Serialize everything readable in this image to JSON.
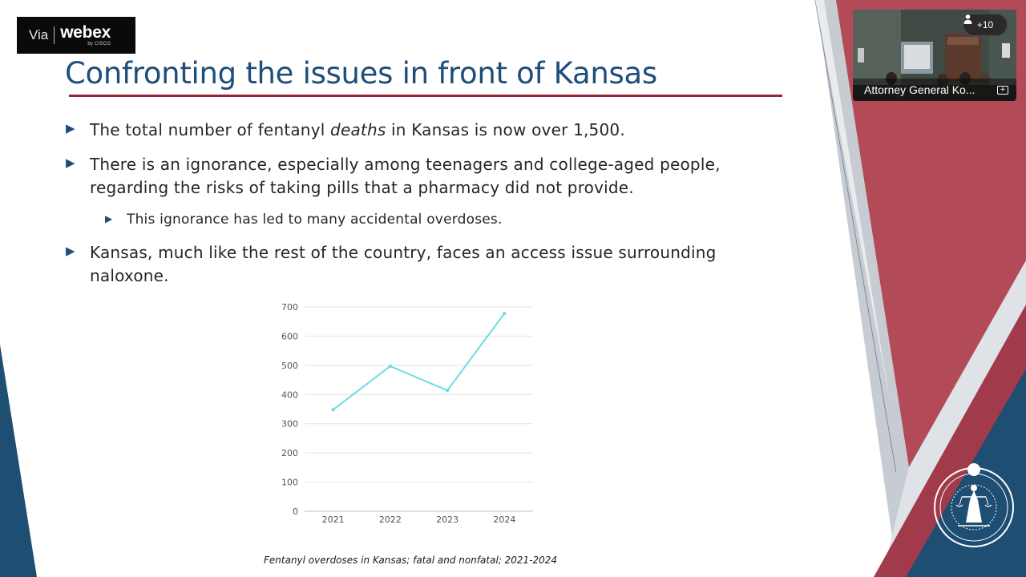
{
  "webex": {
    "via": "Via",
    "brand": "webex",
    "by_cisco": "by CISCO"
  },
  "slide": {
    "title": "Confronting the issues in front of Kansas",
    "bullets": [
      {
        "before": "The total number of fentanyl ",
        "emph": "deaths",
        "after": " in Kansas is now over 1,500."
      },
      {
        "line1": "There is an ignorance, especially among teenagers and college-aged people,",
        "line2": "regarding the risks of taking pills that a pharmacy did not provide."
      },
      {
        "text": "This ignorance has led to many accidental overdoses."
      },
      {
        "line1": "Kansas, much like the rest of the country, faces an access issue surrounding",
        "line2": "naloxone."
      }
    ],
    "caption": "Fentanyl overdoses in Kansas; fatal and nonfatal; 2021-2024"
  },
  "chart_data": {
    "type": "line",
    "categories": [
      "2021",
      "2022",
      "2023",
      "2024"
    ],
    "series": [
      {
        "values": [
          348,
          497,
          414,
          678
        ],
        "color": "#6ddde0"
      }
    ],
    "title": "",
    "xlabel": "",
    "ylabel": "",
    "ylim": [
      0,
      700
    ],
    "yticks": [
      "0",
      "100",
      "200",
      "300",
      "400",
      "500",
      "600",
      "700"
    ],
    "grid": true,
    "legend": "none"
  },
  "meeting": {
    "participant_count": "+10",
    "active_speaker": "Attorney General Ko...",
    "icons": [
      "person-icon",
      "pin-icon"
    ]
  },
  "seal": {
    "text_top": "ATTORNEY GENERAL",
    "text_bottom": "STATE OF KANSAS"
  },
  "colors": {
    "title": "#1e4e79",
    "rule": "#9b2335",
    "accent_red": "#b34a58",
    "accent_blue": "#1f4e73",
    "chart_line": "#6ddde0"
  }
}
